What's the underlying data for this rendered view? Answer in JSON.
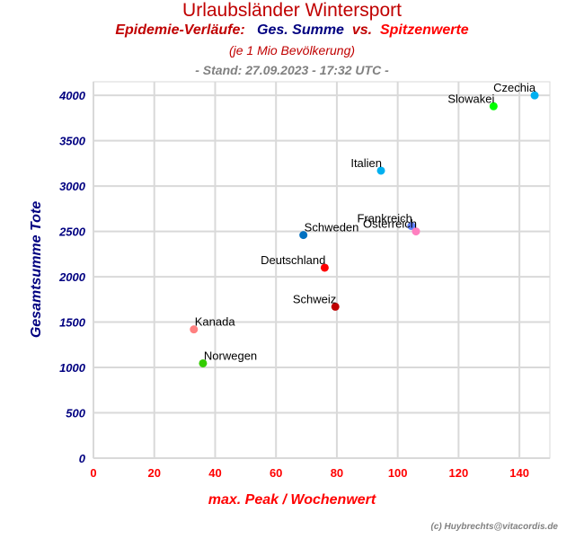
{
  "title": "Urlaubsländer Wintersport",
  "subtitle": {
    "part1": "Epidemie-Verläufe:",
    "part2": "Ges. Summe",
    "part3": "vs.",
    "part4": "Spitzenwerte",
    "color1": "#c00000",
    "color2": "#000080",
    "color3": "#c00000",
    "color4": "#ff0000"
  },
  "note": "(je 1 Mio Bevölkerung)",
  "stand": "- Stand: 27.09.2023 - 17:32 UTC -",
  "credit": "(c) Huybrechts@vitacordis.de",
  "chart_data": {
    "type": "scatter",
    "xlabel": "max. Peak / Wochenwert",
    "ylabel": "Gesamtsumme Tote",
    "xlim": [
      0,
      150
    ],
    "ylim": [
      0,
      4150
    ],
    "xticks": [
      0,
      20,
      40,
      60,
      80,
      100,
      120,
      140
    ],
    "yticks": [
      0,
      500,
      1000,
      1500,
      2000,
      2500,
      3000,
      3500,
      4000
    ],
    "grid": true,
    "xlabel_color": "#ff0000",
    "ylabel_color": "#000080",
    "points": [
      {
        "label": "Czechia",
        "x": 145,
        "y": 4000,
        "color": "#00b0f0",
        "anchor": "end"
      },
      {
        "label": "Slowakei",
        "x": 131.5,
        "y": 3880,
        "color": "#00ff00",
        "anchor": "end"
      },
      {
        "label": "Italien",
        "x": 94.5,
        "y": 3170,
        "color": "#00b0f0",
        "anchor": "end"
      },
      {
        "label": "Frankreich",
        "x": 104.5,
        "y": 2560,
        "color": "#6080ff",
        "anchor": "end"
      },
      {
        "label": "Österreich",
        "x": 106,
        "y": 2500,
        "color": "#ff80c0",
        "anchor": "end"
      },
      {
        "label": "Schweden",
        "x": 69,
        "y": 2460,
        "color": "#0070c0",
        "anchor": "start"
      },
      {
        "label": "Deutschland",
        "x": 76,
        "y": 2100,
        "color": "#ff0000",
        "anchor": "end"
      },
      {
        "label": "Schweiz",
        "x": 79.5,
        "y": 1670,
        "color": "#c00000",
        "anchor": "end"
      },
      {
        "label": "Kanada",
        "x": 33,
        "y": 1420,
        "color": "#ff8080",
        "anchor": "start"
      },
      {
        "label": "Norwegen",
        "x": 36,
        "y": 1045,
        "color": "#33cc00",
        "anchor": "start"
      }
    ]
  }
}
